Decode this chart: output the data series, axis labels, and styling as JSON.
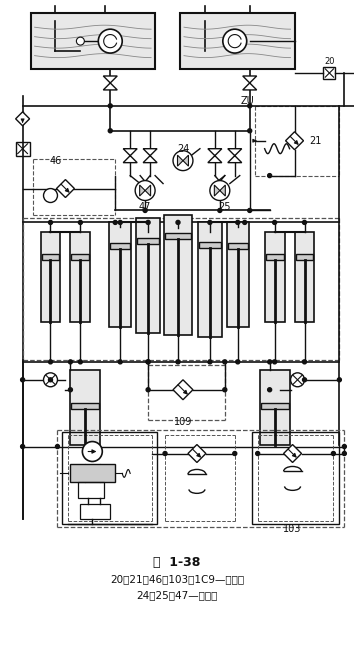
{
  "title": "图  1-38",
  "caption_line1": "20、21、46、103、1C9—节流阀",
  "caption_line2": "24、25，47—充液阀",
  "bg_color": "#ffffff",
  "lc": "#111111",
  "dc": "#555555",
  "gray_fill": "#cccccc",
  "light_fill": "#e8e8e8"
}
